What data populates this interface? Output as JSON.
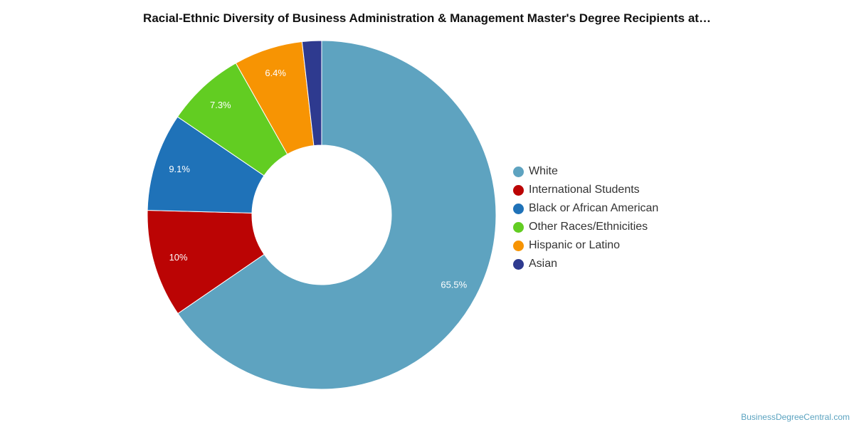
{
  "chart_data": {
    "type": "pie",
    "donut": true,
    "title": "Racial-Ethnic Diversity of Business Administration & Management Master's Degree Recipients at…",
    "legend_position": "right",
    "slices": [
      {
        "label": "White",
        "value": 65.5,
        "value_label": "65.5%",
        "color": "#5ea3c0"
      },
      {
        "label": "International Students",
        "value": 10.0,
        "value_label": "10%",
        "color": "#bb0404"
      },
      {
        "label": "Black or African American",
        "value": 9.1,
        "value_label": "9.1%",
        "color": "#1f72b8"
      },
      {
        "label": "Other Races/Ethnicities",
        "value": 7.3,
        "value_label": "7.3%",
        "color": "#62cd22"
      },
      {
        "label": "Hispanic or Latino",
        "value": 6.4,
        "value_label": "6.4%",
        "color": "#f79403"
      },
      {
        "label": "Asian",
        "value": 1.8,
        "value_label": "",
        "color": "#2e3a8f"
      }
    ]
  },
  "watermark": "BusinessDegreeCentral.com"
}
